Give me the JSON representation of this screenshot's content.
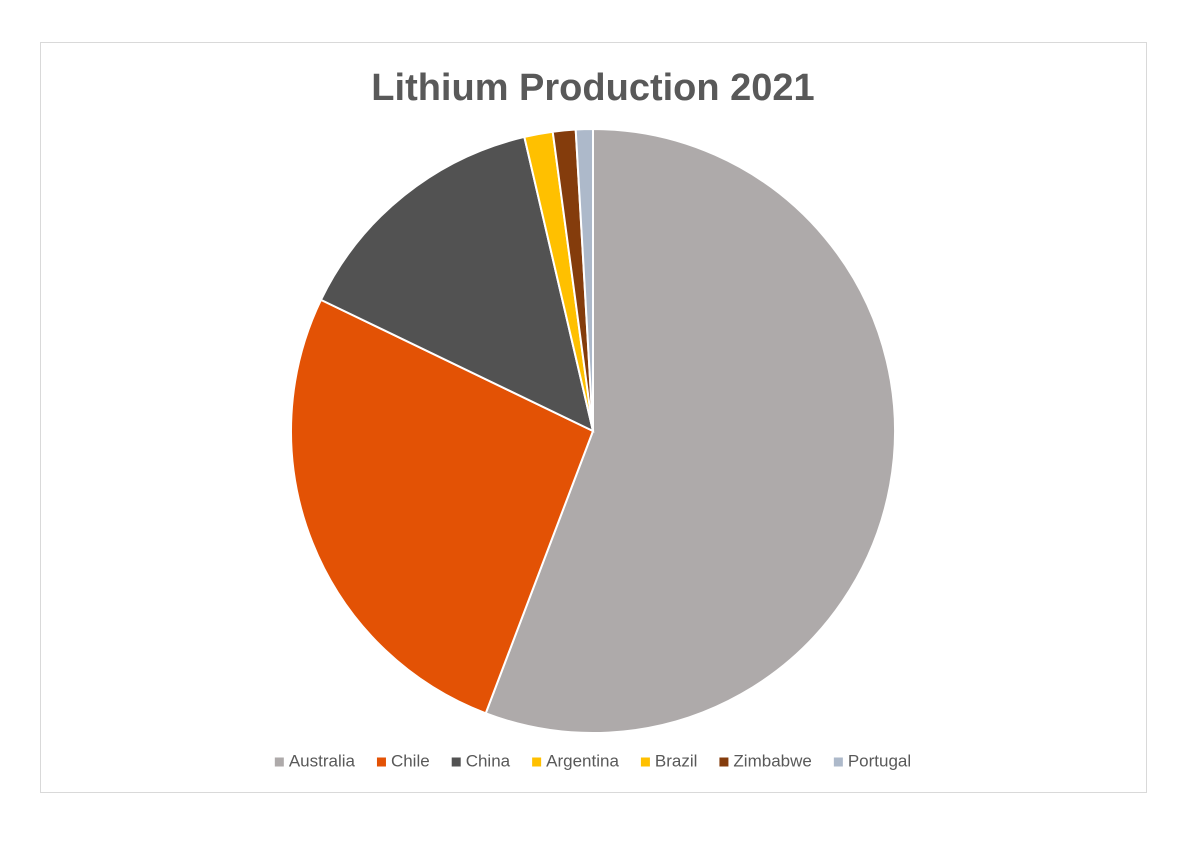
{
  "chart_data": {
    "type": "pie",
    "title": "Lithium Production 2021",
    "categories": [
      "Australia",
      "Chile",
      "China",
      "Argentina",
      "Brazil",
      "Zimbabwe",
      "Portugal"
    ],
    "values": [
      55000,
      26000,
      14000,
      null,
      1500,
      1200,
      900
    ],
    "colors": [
      "#aeaaaa",
      "#e35205",
      "#525252",
      "#ffc000",
      "#ffc000",
      "#843c0c",
      "#adb9ca"
    ],
    "legend": "bottom"
  }
}
